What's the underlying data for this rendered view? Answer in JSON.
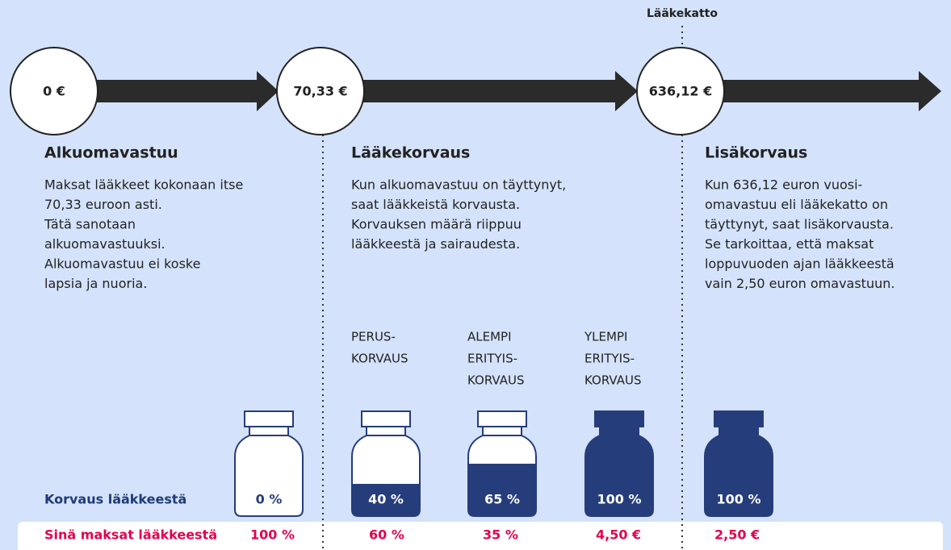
{
  "top_label": "Lääkekatto",
  "stages": [
    {
      "amount": "0 €",
      "title": "Alkuomavastuu",
      "text": [
        "Maksat lääkkeet kokonaan itse",
        "70,33 euroon asti.",
        "Tätä sanotaan",
        "alkuomavastuuksi.",
        "Alkuomavastuu ei koske",
        "lapsia ja nuoria."
      ]
    },
    {
      "amount": "70,33 €",
      "title": "Lääkekorvaus",
      "text": [
        "Kun alkuomavastuu on täyttynyt,",
        "saat lääkkeistä korvausta.",
        "Korvauksen määrä riippuu",
        "lääkkeestä ja sairaudesta."
      ]
    },
    {
      "amount": "636,12 €",
      "title": "Lisäkorvaus",
      "text": [
        "Kun 636,12 euron vuosi-",
        "omavastuu eli lääkekatto on",
        "täyttynyt, saat lisäkorvausta.",
        "Se tarkoittaa, että maksat",
        "loppuvuoden ajan lääkkeestä",
        "vain 2,50 euron omavastuun."
      ]
    }
  ],
  "row_labels": {
    "compensation": "Korvaus lääkkeestä",
    "you_pay": "Sinä maksat lääkkeestä"
  },
  "bottles": [
    {
      "compensation": {
        "value": 0,
        "label": "0 %"
      },
      "you_pay": "100 %"
    },
    {
      "category": [
        "PERUS-",
        "KORVAUS"
      ],
      "compensation": {
        "value": 40,
        "label": "40 %"
      },
      "you_pay": "60 %"
    },
    {
      "category": [
        "ALEMPI",
        "ERITYIS-",
        "KORVAUS"
      ],
      "compensation": {
        "value": 65,
        "label": "65 %"
      },
      "you_pay": "35 %"
    },
    {
      "category": [
        "YLEMPI",
        "ERITYIS-",
        "KORVAUS"
      ],
      "compensation": {
        "value": 100,
        "label": "100 %"
      },
      "you_pay": "4,50 €"
    },
    {
      "compensation": {
        "value": 100,
        "label": "100 %"
      },
      "you_pay": "2,50 €"
    }
  ]
}
